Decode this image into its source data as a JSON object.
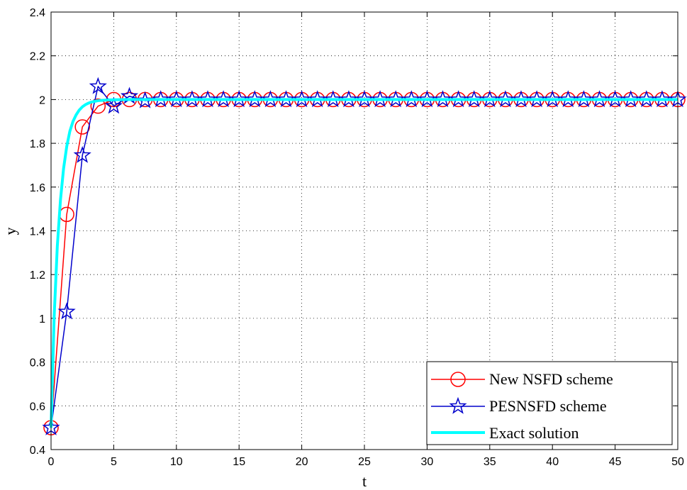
{
  "chart_data": {
    "type": "line",
    "title": "",
    "xlabel": "t",
    "ylabel": "y",
    "xlim": [
      0,
      50
    ],
    "ylim": [
      0.4,
      2.4
    ],
    "xticks": [
      0,
      5,
      10,
      15,
      20,
      25,
      30,
      35,
      40,
      45,
      50
    ],
    "xtick_labels": [
      "0",
      "5",
      "10",
      "15",
      "20",
      "25",
      "30",
      "35",
      "40",
      "45",
      "50"
    ],
    "yticks": [
      0.4,
      0.6,
      0.8,
      1.0,
      1.2,
      1.4,
      1.6,
      1.8,
      2.0,
      2.2,
      2.4
    ],
    "ytick_labels": [
      "0.4",
      "0.6",
      "0.8",
      "1",
      "1.2",
      "1.4",
      "1.6",
      "1.8",
      "2",
      "2.2",
      "2.4"
    ],
    "grid": true,
    "legend_position": "bottom-right",
    "series": [
      {
        "name": "New NSFD scheme",
        "color": "#ff0000",
        "marker": "circle",
        "x": [
          0,
          1.25,
          2.5,
          3.75,
          5.0,
          6.25,
          7.5,
          8.75,
          10.0,
          11.25,
          12.5,
          13.75,
          15.0,
          16.25,
          17.5,
          18.75,
          20.0,
          21.25,
          22.5,
          23.75,
          25.0,
          26.25,
          27.5,
          28.75,
          30.0,
          31.25,
          32.5,
          33.75,
          35.0,
          36.25,
          37.5,
          38.75,
          40.0,
          41.25,
          42.5,
          43.75,
          45.0,
          46.25,
          47.5,
          48.75,
          50.0
        ],
        "y": [
          0.5,
          1.475,
          1.875,
          1.97,
          2.0,
          2.0,
          2.0,
          2.0,
          2.0,
          2.0,
          2.0,
          2.0,
          2.0,
          2.0,
          2.0,
          2.0,
          2.0,
          2.0,
          2.0,
          2.0,
          2.0,
          2.0,
          2.0,
          2.0,
          2.0,
          2.0,
          2.0,
          2.0,
          2.0,
          2.0,
          2.0,
          2.0,
          2.0,
          2.0,
          2.0,
          2.0,
          2.0,
          2.0,
          2.0,
          2.0,
          2.0
        ]
      },
      {
        "name": "PESNSFD scheme",
        "color": "#0000cc",
        "marker": "star",
        "x": [
          0,
          1.25,
          2.5,
          3.75,
          5.0,
          6.25,
          7.5,
          8.75,
          10.0,
          11.25,
          12.5,
          13.75,
          15.0,
          16.25,
          17.5,
          18.75,
          20.0,
          21.25,
          22.5,
          23.75,
          25.0,
          26.25,
          27.5,
          28.75,
          30.0,
          31.25,
          32.5,
          33.75,
          35.0,
          36.25,
          37.5,
          38.75,
          40.0,
          41.25,
          42.5,
          43.75,
          45.0,
          46.25,
          47.5,
          48.75,
          50.0
        ],
        "y": [
          0.5,
          1.03,
          1.745,
          2.06,
          1.97,
          2.015,
          1.995,
          2.0,
          2.0,
          2.0,
          2.0,
          2.0,
          2.0,
          2.0,
          2.0,
          2.0,
          2.0,
          2.0,
          2.0,
          2.0,
          2.0,
          2.0,
          2.0,
          2.0,
          2.0,
          2.0,
          2.0,
          2.0,
          2.0,
          2.0,
          2.0,
          2.0,
          2.0,
          2.0,
          2.0,
          2.0,
          2.0,
          2.0,
          2.0,
          2.0,
          2.0
        ]
      },
      {
        "name": "Exact solution",
        "color": "#00ffff",
        "marker": "none",
        "x": [
          0,
          0.25,
          0.5,
          0.75,
          1.0,
          1.25,
          1.5,
          1.75,
          2.0,
          2.25,
          2.5,
          2.75,
          3.0,
          3.25,
          3.5,
          3.75,
          4.0,
          4.5,
          5.0,
          6.0,
          8.0,
          10.0,
          20.0,
          30.0,
          40.0,
          50.0
        ],
        "y": [
          0.5,
          1.01,
          1.33,
          1.54,
          1.685,
          1.785,
          1.855,
          1.9,
          1.93,
          1.952,
          1.967,
          1.977,
          1.984,
          1.989,
          1.992,
          1.995,
          1.996,
          1.998,
          1.999,
          2.0,
          2.0,
          2.0,
          2.0,
          2.0,
          2.0,
          2.0
        ]
      }
    ]
  }
}
